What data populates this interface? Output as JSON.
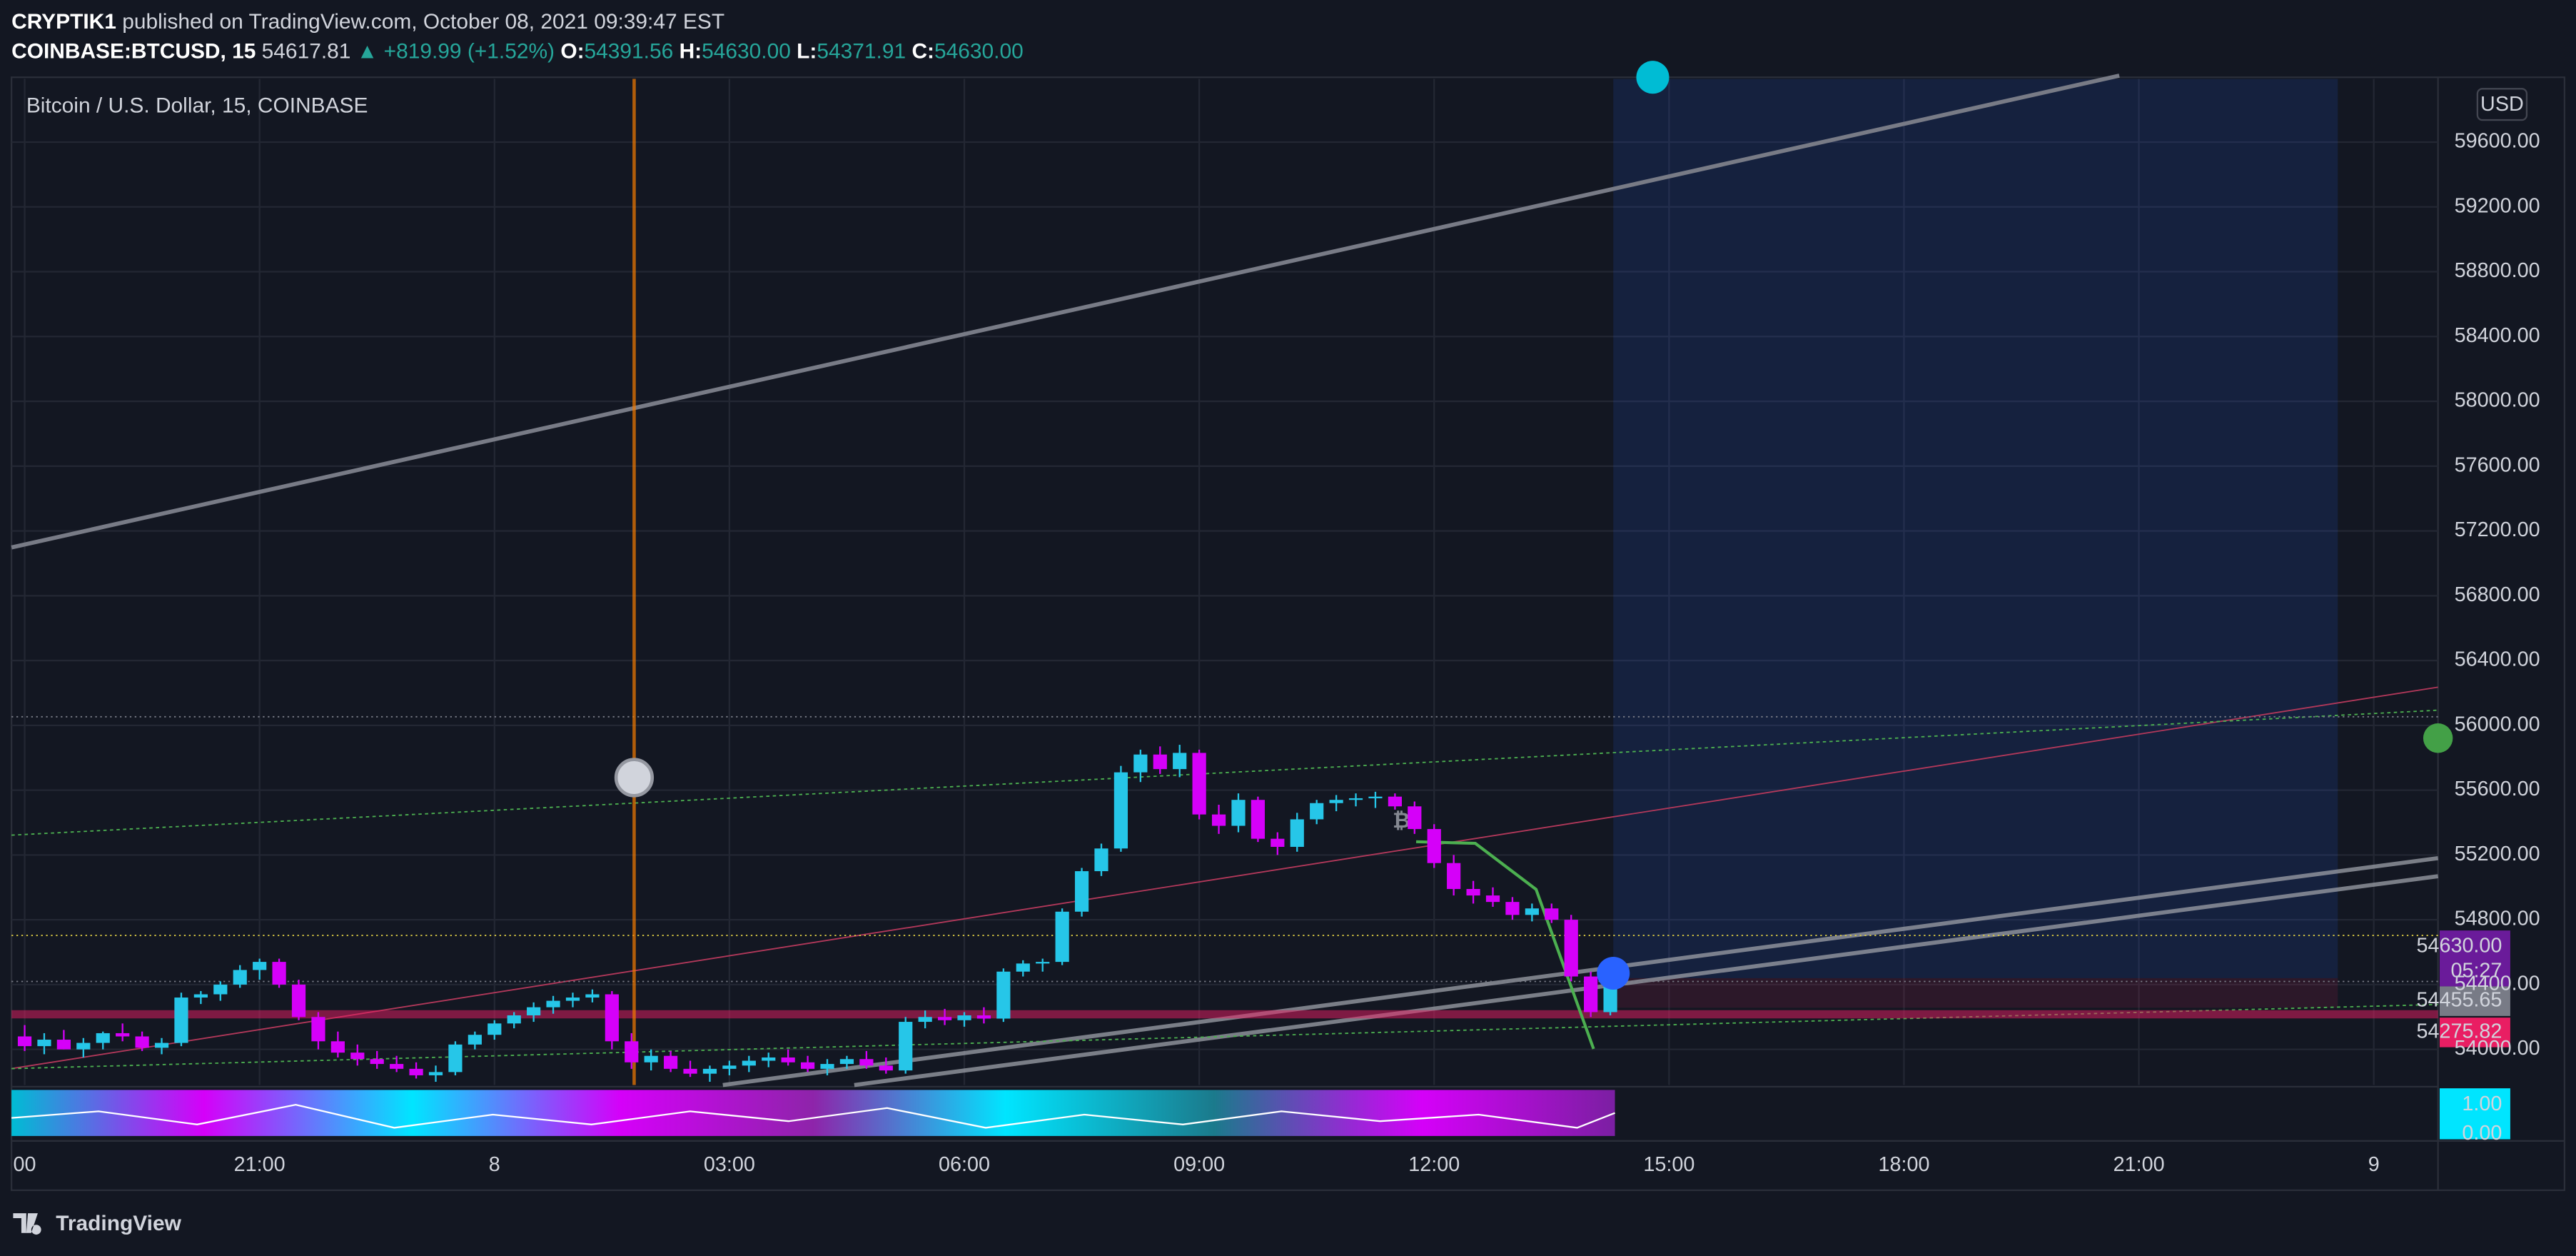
{
  "header": {
    "author": "CRYPTIK1",
    "published": " published on TradingView.com, October 08, 2021 09:39:47 EST",
    "symbol": "COINBASE:BTCUSD, 15",
    "last": " 54617.81 ",
    "change": "▲ +819.99 (+1.52%)",
    "o_label": " O:",
    "o_value": "54391.56",
    "h_label": " H:",
    "h_value": "54630.00",
    "l_label": " L:",
    "l_value": "54371.91",
    "c_label": " C:",
    "c_value": "54630.00"
  },
  "legend": "Bitcoin / U.S. Dollar, 15, COINBASE",
  "currency": "USD",
  "watermark": "₿",
  "price_labels": {
    "current": "54630.00",
    "countdown": "05:27",
    "grey": "54455.65",
    "pink": "54275.82"
  },
  "indicator_labels": [
    "1.00",
    "0.00"
  ],
  "brand": "TradingView",
  "chart_data": {
    "type": "candlestick",
    "title": "Bitcoin / U.S. Dollar, 15, COINBASE",
    "up_color": "#26c6e8",
    "down_color": "#d500f9",
    "grid": true,
    "xlim": [
      -0.168,
      30.82
    ],
    "ylim": [
      53780,
      59990
    ],
    "xticks": [
      {
        "value": 0,
        "label": "00"
      },
      {
        "value": 3,
        "label": "21:00"
      },
      {
        "value": 6,
        "label": "8"
      },
      {
        "value": 9,
        "label": "03:00"
      },
      {
        "value": 12,
        "label": "06:00"
      },
      {
        "value": 15,
        "label": "09:00"
      },
      {
        "value": 18,
        "label": "12:00"
      },
      {
        "value": 21,
        "label": "15:00"
      },
      {
        "value": 24,
        "label": "18:00"
      },
      {
        "value": 27,
        "label": "21:00"
      },
      {
        "value": 30,
        "label": "9"
      }
    ],
    "yticks": [
      {
        "value": 54000,
        "label": "54000.00"
      },
      {
        "value": 54400,
        "label": "54400.00"
      },
      {
        "value": 54800,
        "label": "54800.00"
      },
      {
        "value": 55200,
        "label": "55200.00"
      },
      {
        "value": 55600,
        "label": "55600.00"
      },
      {
        "value": 56000,
        "label": "56000.00"
      },
      {
        "value": 56400,
        "label": "56400.00"
      },
      {
        "value": 56800,
        "label": "56800.00"
      },
      {
        "value": 57200,
        "label": "57200.00"
      },
      {
        "value": 57600,
        "label": "57600.00"
      },
      {
        "value": 58000,
        "label": "58000.00"
      },
      {
        "value": 58400,
        "label": "58400.00"
      },
      {
        "value": 58800,
        "label": "58800.00"
      },
      {
        "value": 59200,
        "label": "59200.00"
      },
      {
        "value": 59600,
        "label": "59600.00"
      }
    ],
    "candles": {
      "x": [
        0,
        0.25,
        0.5,
        0.75,
        1,
        1.25,
        1.5,
        1.75,
        2,
        2.25,
        2.5,
        2.75,
        3,
        3.25,
        3.5,
        3.75,
        4,
        4.25,
        4.5,
        4.75,
        5,
        5.25,
        5.5,
        5.75,
        6,
        6.25,
        6.5,
        6.75,
        7,
        7.25,
        7.5,
        7.75,
        8,
        8.25,
        8.5,
        8.75,
        9,
        9.25,
        9.5,
        9.75,
        10,
        10.25,
        10.5,
        10.75,
        11,
        11.25,
        11.5,
        11.75,
        12,
        12.25,
        12.5,
        12.75,
        13,
        13.25,
        13.5,
        13.75,
        14,
        14.25,
        14.5,
        14.75,
        15,
        15.25,
        15.5,
        15.75,
        16,
        16.25,
        16.5,
        16.75,
        17,
        17.25,
        17.5,
        17.75,
        18,
        18.25,
        18.5,
        18.75,
        19,
        19.25,
        19.5,
        19.75,
        20,
        20.25
      ],
      "open": [
        54080,
        54020,
        54060,
        54000,
        54040,
        54100,
        54080,
        54010,
        54040,
        54320,
        54340,
        54400,
        54490,
        54540,
        54400,
        54200,
        54050,
        53980,
        53940,
        53910,
        53880,
        53840,
        53860,
        54030,
        54090,
        54160,
        54210,
        54260,
        54300,
        54320,
        54340,
        54050,
        53920,
        53960,
        53880,
        53850,
        53880,
        53900,
        53930,
        53950,
        53920,
        53880,
        53910,
        53940,
        53900,
        53870,
        54170,
        54200,
        54180,
        54210,
        54190,
        54480,
        54530,
        54540,
        54850,
        55100,
        55240,
        55710,
        55820,
        55730,
        55830,
        55450,
        55380,
        55540,
        55300,
        55250,
        55420,
        55520,
        55540,
        55550,
        55560,
        55500,
        55360,
        55150,
        54990,
        54950,
        54910,
        54830,
        54870,
        54800,
        54450,
        54230
      ],
      "high": [
        54150,
        54100,
        54120,
        54070,
        54110,
        54160,
        54110,
        54070,
        54350,
        54360,
        54420,
        54520,
        54560,
        54560,
        54430,
        54230,
        54110,
        54030,
        53990,
        53960,
        53920,
        53900,
        54050,
        54110,
        54180,
        54230,
        54290,
        54330,
        54350,
        54370,
        54360,
        54100,
        54000,
        53990,
        53930,
        53900,
        53930,
        53960,
        53980,
        54000,
        53960,
        53940,
        53960,
        53990,
        53950,
        54200,
        54240,
        54250,
        54230,
        54260,
        54500,
        54550,
        54560,
        54870,
        55120,
        55270,
        55750,
        55850,
        55870,
        55880,
        55850,
        55510,
        55580,
        55560,
        55340,
        55460,
        55540,
        55570,
        55580,
        55590,
        55580,
        55530,
        55390,
        55200,
        55040,
        55000,
        54940,
        54900,
        54900,
        54830,
        54480,
        54420
      ],
      "low": [
        53990,
        53970,
        54000,
        53950,
        54000,
        54050,
        53990,
        53970,
        54020,
        54280,
        54300,
        54380,
        54430,
        54380,
        54180,
        54000,
        53950,
        53900,
        53880,
        53860,
        53820,
        53800,
        53840,
        54000,
        54060,
        54130,
        54170,
        54220,
        54260,
        54290,
        54000,
        53880,
        53870,
        53860,
        53830,
        53800,
        53840,
        53860,
        53890,
        53900,
        53860,
        53840,
        53880,
        53880,
        53850,
        53850,
        54130,
        54150,
        54140,
        54160,
        54170,
        54450,
        54480,
        54520,
        54820,
        55070,
        55220,
        55650,
        55700,
        55680,
        55420,
        55330,
        55340,
        55280,
        55200,
        55220,
        55390,
        55470,
        55500,
        55490,
        55480,
        55330,
        55120,
        54950,
        54900,
        54880,
        54800,
        54790,
        54780,
        54420,
        54200,
        54210
      ],
      "close": [
        54020,
        54060,
        54000,
        54040,
        54100,
        54080,
        54010,
        54040,
        54320,
        54340,
        54400,
        54490,
        54540,
        54400,
        54200,
        54050,
        53980,
        53940,
        53910,
        53880,
        53840,
        53860,
        54030,
        54090,
        54160,
        54210,
        54260,
        54300,
        54320,
        54340,
        54050,
        53920,
        53960,
        53880,
        53850,
        53880,
        53900,
        53930,
        53950,
        53920,
        53880,
        53910,
        53940,
        53900,
        53870,
        54170,
        54200,
        54180,
        54210,
        54190,
        54480,
        54530,
        54540,
        54850,
        55100,
        55240,
        55710,
        55820,
        55730,
        55830,
        55450,
        55380,
        55540,
        55300,
        55250,
        55420,
        55520,
        55540,
        55550,
        55560,
        55500,
        55360,
        55150,
        54990,
        54950,
        54910,
        54830,
        54870,
        54800,
        54450,
        54230,
        54400
      ]
    }
  }
}
